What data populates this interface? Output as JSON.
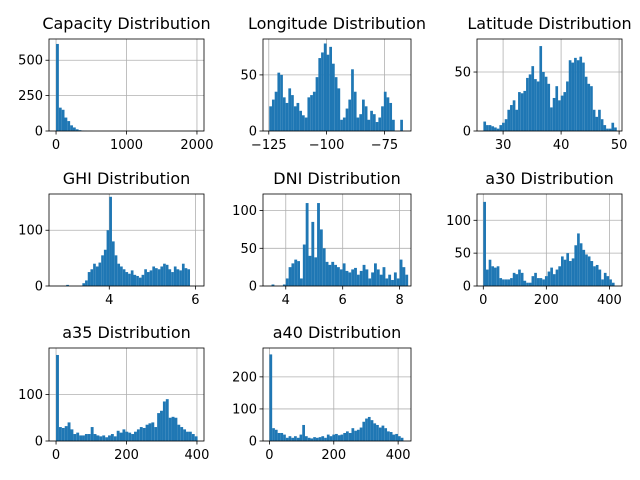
{
  "chart_data": [
    {
      "type": "bar",
      "title": "Capacity Distribution",
      "color": "#1f77b4",
      "xlim": [
        -100,
        2100
      ],
      "ylim": [
        0,
        650
      ],
      "xticks": [
        0,
        1000,
        2000
      ],
      "yticks": [
        0,
        250,
        500
      ],
      "bin_start": 0,
      "bin_width": 40,
      "counts": [
        615,
        165,
        150,
        95,
        70,
        40,
        25,
        12,
        6,
        3,
        2,
        1,
        1,
        0,
        0,
        0,
        0,
        0,
        0,
        0,
        0,
        0,
        0,
        0,
        0,
        0,
        0,
        0,
        0,
        0,
        0,
        0,
        0,
        0,
        0,
        0,
        0,
        0,
        0,
        0,
        0,
        0,
        0,
        0,
        0,
        0,
        0,
        0,
        0,
        1
      ]
    },
    {
      "type": "bar",
      "title": "Longitude Distribution",
      "color": "#1f77b4",
      "xlim": [
        -127.5,
        -63.5
      ],
      "ylim": [
        0,
        82
      ],
      "xticks": [
        -125,
        -100,
        -75
      ],
      "yticks": [
        0,
        50
      ],
      "bin_start": -124.8,
      "bin_width": 1.18,
      "counts": [
        22,
        28,
        35,
        52,
        50,
        30,
        25,
        38,
        32,
        22,
        25,
        18,
        14,
        12,
        30,
        32,
        35,
        48,
        65,
        70,
        78,
        68,
        75,
        60,
        48,
        38,
        10,
        12,
        20,
        28,
        55,
        35,
        12,
        15,
        28,
        22,
        10,
        18,
        15,
        8,
        12,
        22,
        35,
        30,
        25,
        10,
        0,
        0,
        10
      ]
    },
    {
      "type": "bar",
      "title": "Latitude Distribution",
      "color": "#1f77b4",
      "xlim": [
        25.5,
        50.5
      ],
      "ylim": [
        0,
        78
      ],
      "xticks": [
        30,
        40,
        50
      ],
      "yticks": [
        0,
        50
      ],
      "bin_start": 26.6,
      "bin_width": 0.46,
      "counts": [
        8,
        5,
        5,
        4,
        3,
        2,
        5,
        7,
        10,
        18,
        22,
        26,
        18,
        33,
        32,
        34,
        45,
        48,
        55,
        44,
        42,
        72,
        50,
        46,
        40,
        20,
        28,
        38,
        26,
        30,
        33,
        42,
        60,
        58,
        62,
        60,
        63,
        58,
        46,
        40,
        38,
        18,
        12,
        18,
        10,
        5,
        2,
        2,
        7,
        3
      ]
    },
    {
      "type": "bar",
      "title": "GHI Distribution",
      "color": "#1f77b4",
      "xlim": [
        2.6,
        6.2
      ],
      "ylim": [
        0,
        165
      ],
      "xticks": [
        4,
        6
      ],
      "yticks": [
        0,
        100
      ],
      "bin_start": 3.0,
      "bin_width": 0.0625,
      "counts": [
        2,
        0,
        0,
        0,
        0,
        0,
        5,
        10,
        25,
        30,
        40,
        35,
        42,
        55,
        65,
        100,
        160,
        80,
        55,
        40,
        35,
        30,
        25,
        22,
        28,
        20,
        18,
        15,
        20,
        30,
        25,
        28,
        35,
        32,
        30,
        35,
        40,
        38,
        30,
        25,
        35,
        30,
        28,
        40,
        32,
        30
      ]
    },
    {
      "type": "bar",
      "title": "DNI Distribution",
      "color": "#1f77b4",
      "xlim": [
        3.2,
        8.4
      ],
      "ylim": [
        0,
        122
      ],
      "xticks": [
        4,
        6,
        8
      ],
      "yticks": [
        0,
        50,
        100
      ],
      "bin_start": 3.5,
      "bin_width": 0.1,
      "counts": [
        2,
        0,
        0,
        0,
        2,
        10,
        25,
        30,
        35,
        33,
        10,
        55,
        110,
        40,
        85,
        38,
        110,
        75,
        50,
        32,
        28,
        32,
        28,
        25,
        22,
        30,
        20,
        18,
        22,
        24,
        15,
        20,
        28,
        22,
        10,
        18,
        30,
        22,
        15,
        25,
        10,
        15,
        8,
        18,
        10,
        35,
        25,
        15
      ]
    },
    {
      "type": "bar",
      "title": "a30 Distribution",
      "color": "#1f77b4",
      "xlim": [
        -20,
        440
      ],
      "ylim": [
        0,
        140
      ],
      "xticks": [
        0,
        200,
        400
      ],
      "yticks": [
        0,
        50,
        100
      ],
      "bin_start": 0,
      "bin_width": 8.5,
      "counts": [
        128,
        25,
        40,
        30,
        28,
        30,
        12,
        10,
        10,
        10,
        12,
        20,
        18,
        25,
        20,
        8,
        5,
        5,
        15,
        20,
        12,
        12,
        10,
        15,
        22,
        28,
        18,
        25,
        30,
        45,
        40,
        50,
        38,
        42,
        62,
        80,
        65,
        55,
        48,
        45,
        38,
        30,
        32,
        25,
        10,
        20,
        15,
        10,
        5
      ]
    },
    {
      "type": "bar",
      "title": "a35 Distribution",
      "color": "#1f77b4",
      "xlim": [
        -20,
        420
      ],
      "ylim": [
        0,
        200
      ],
      "xticks": [
        0,
        200,
        400
      ],
      "yticks": [
        0,
        100
      ],
      "bin_start": 0,
      "bin_width": 8.2,
      "counts": [
        185,
        30,
        28,
        32,
        40,
        25,
        15,
        18,
        12,
        12,
        15,
        15,
        30,
        15,
        12,
        10,
        12,
        8,
        12,
        15,
        10,
        22,
        18,
        25,
        20,
        18,
        15,
        20,
        25,
        30,
        28,
        35,
        38,
        40,
        30,
        60,
        65,
        85,
        90,
        50,
        52,
        50,
        35,
        30,
        25,
        20,
        20,
        15,
        10
      ]
    },
    {
      "type": "bar",
      "title": "a40 Distribution",
      "color": "#1f77b4",
      "xlim": [
        -20,
        440
      ],
      "ylim": [
        0,
        290
      ],
      "xticks": [
        0,
        200,
        400
      ],
      "yticks": [
        0,
        100,
        200
      ],
      "bin_start": 0,
      "bin_width": 8.5,
      "counts": [
        270,
        40,
        35,
        25,
        25,
        20,
        10,
        15,
        10,
        15,
        10,
        20,
        50,
        15,
        10,
        8,
        12,
        10,
        12,
        15,
        10,
        20,
        15,
        20,
        22,
        18,
        20,
        25,
        30,
        25,
        40,
        32,
        35,
        42,
        60,
        70,
        75,
        65,
        55,
        50,
        42,
        48,
        40,
        30,
        28,
        20,
        22,
        15,
        10
      ]
    }
  ]
}
